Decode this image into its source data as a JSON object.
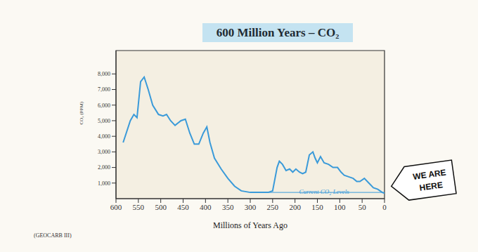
{
  "chart_data": {
    "type": "line",
    "title": "600 Million Years – CO₂",
    "x_label": "Millions of Years Ago",
    "y_label": "CO₂ (PPM)",
    "source": "(GEOCARB III)",
    "color": "#3a9ad9",
    "x": [
      584,
      568,
      560,
      553,
      545,
      537,
      528,
      518,
      505,
      495,
      487,
      478,
      468,
      455,
      445,
      435,
      425,
      415,
      405,
      397,
      390,
      380,
      365,
      350,
      335,
      320,
      300,
      280,
      260,
      250,
      240,
      235,
      228,
      220,
      212,
      205,
      198,
      190,
      183,
      176,
      168,
      160,
      155,
      150,
      143,
      135,
      125,
      115,
      105,
      97,
      90,
      80,
      70,
      62,
      55,
      45,
      35,
      25,
      15,
      5,
      0
    ],
    "values": [
      3600,
      5000,
      5400,
      5200,
      7500,
      7800,
      7000,
      6000,
      5400,
      5300,
      5400,
      5000,
      4700,
      5000,
      5100,
      4200,
      3500,
      3500,
      4200,
      4600,
      3600,
      2600,
      1900,
      1300,
      800,
      500,
      400,
      400,
      400,
      500,
      2000,
      2400,
      2200,
      1800,
      1900,
      1700,
      1900,
      1700,
      1600,
      1700,
      2800,
      3000,
      2600,
      2300,
      2700,
      2300,
      2200,
      2000,
      2000,
      1700,
      1500,
      1400,
      1300,
      1100,
      1100,
      1300,
      1000,
      700,
      600,
      400,
      350
    ],
    "xlim": [
      600,
      0
    ],
    "xticks": [
      600,
      550,
      500,
      450,
      400,
      350,
      300,
      250,
      200,
      150,
      100,
      50,
      0
    ],
    "ylim": [
      0,
      9500
    ],
    "yticks": [
      {
        "value": 1000,
        "label": "1,000"
      },
      {
        "value": 2000,
        "label": "2,000"
      },
      {
        "value": 3000,
        "label": "3,000"
      },
      {
        "value": 4000,
        "label": "4,000"
      },
      {
        "value": 5000,
        "label": "5,000"
      },
      {
        "value": 6000,
        "label": "6,000"
      },
      {
        "value": 7000,
        "label": "7,000"
      },
      {
        "value": 8000,
        "label": "8,000"
      }
    ],
    "grid": false,
    "annotations": [
      {
        "text": "Current CO₂ Levels",
        "value": 400,
        "x": [
          270,
          0
        ]
      },
      {
        "text": "WE ARE HERE"
      }
    ]
  }
}
